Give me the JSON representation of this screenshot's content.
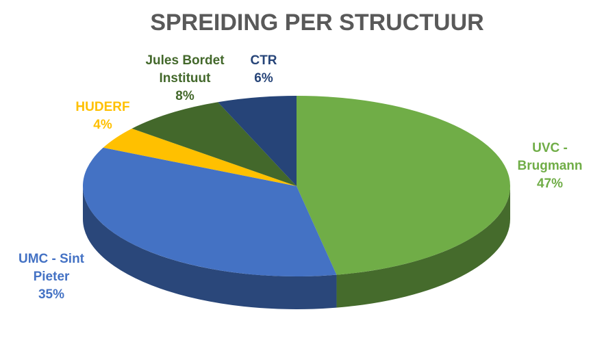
{
  "chart_data": {
    "type": "pie",
    "title": "SPREIDING PER STRUCTUUR",
    "categories": [
      "UVC - Brugmann",
      "UMC - Sint Pieter",
      "HUDERF",
      "Jules Bordet Instituut",
      "CTR"
    ],
    "values": [
      47,
      35,
      4,
      8,
      6
    ],
    "value_labels": [
      "47%",
      "35%",
      "4%",
      "8%",
      "6%"
    ],
    "colors": [
      "#70ad47",
      "#4472c4",
      "#ffc000",
      "#43682b",
      "#264478"
    ]
  }
}
